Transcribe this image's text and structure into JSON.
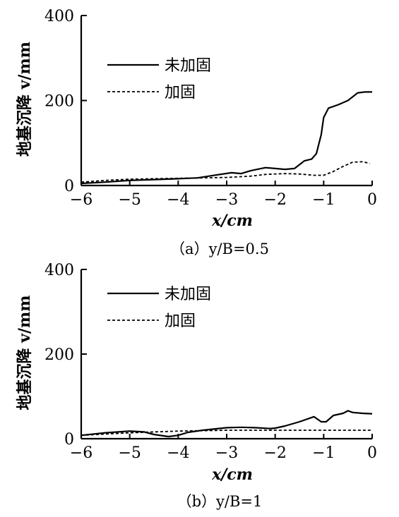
{
  "chart_data": [
    {
      "type": "line",
      "caption": "（a）y/B=0.5",
      "xlabel": "x/cm",
      "ylabel": "地基沉降 v/mm",
      "xlim": [
        -6,
        0
      ],
      "ylim": [
        0,
        400
      ],
      "xticks": [
        "−6",
        "−5",
        "−4",
        "−3",
        "−2",
        "−1",
        "0"
      ],
      "yticks": [
        "0",
        "200",
        "400"
      ],
      "legend_position": "upper-left",
      "series": [
        {
          "name": "未加固",
          "style": "solid",
          "x": [
            -6,
            -5.5,
            -5,
            -4.5,
            -4,
            -3.6,
            -3.2,
            -2.9,
            -2.7,
            -2.5,
            -2.2,
            -2.0,
            -1.8,
            -1.6,
            -1.4,
            -1.25,
            -1.15,
            -1.05,
            -1.0,
            -0.9,
            -0.7,
            -0.5,
            -0.3,
            -0.15,
            0
          ],
          "y": [
            5,
            8,
            12,
            14,
            16,
            18,
            25,
            30,
            28,
            35,
            42,
            40,
            38,
            40,
            58,
            62,
            75,
            120,
            160,
            182,
            190,
            200,
            218,
            220,
            220
          ]
        },
        {
          "name": "加固",
          "style": "dashed",
          "x": [
            -6,
            -5.5,
            -5,
            -4.5,
            -4,
            -3.5,
            -3,
            -2.5,
            -2.2,
            -1.8,
            -1.5,
            -1.2,
            -1.0,
            -0.8,
            -0.6,
            -0.4,
            -0.2,
            -0.05
          ],
          "y": [
            8,
            12,
            15,
            16,
            17,
            18,
            19,
            22,
            26,
            28,
            27,
            24,
            24,
            33,
            45,
            55,
            56,
            52
          ]
        }
      ]
    },
    {
      "type": "line",
      "caption": "（b）y/B=1",
      "xlabel": "x/cm",
      "ylabel": "地基沉降 v/mm",
      "xlim": [
        -6,
        0
      ],
      "ylim": [
        0,
        400
      ],
      "xticks": [
        "−6",
        "−5",
        "−4",
        "−3",
        "−2",
        "−1",
        "0"
      ],
      "yticks": [
        "0",
        "200",
        "400"
      ],
      "legend_position": "upper-left",
      "series": [
        {
          "name": "未加固",
          "style": "solid",
          "x": [
            -6,
            -5.5,
            -5,
            -4.7,
            -4.5,
            -4.2,
            -4.0,
            -3.8,
            -3.5,
            -3.0,
            -2.7,
            -2.4,
            -2.1,
            -2.0,
            -1.8,
            -1.5,
            -1.2,
            -1.05,
            -0.95,
            -0.8,
            -0.6,
            -0.5,
            -0.4,
            -0.2,
            0
          ],
          "y": [
            8,
            14,
            18,
            16,
            10,
            5,
            8,
            15,
            20,
            26,
            27,
            26,
            24,
            25,
            30,
            40,
            52,
            40,
            40,
            55,
            60,
            66,
            62,
            60,
            59
          ]
        },
        {
          "name": "加固",
          "style": "dashed",
          "x": [
            -6,
            -5,
            -4,
            -3,
            -2,
            -1,
            0
          ],
          "y": [
            8,
            14,
            18,
            20,
            20,
            20,
            20
          ]
        }
      ]
    }
  ]
}
